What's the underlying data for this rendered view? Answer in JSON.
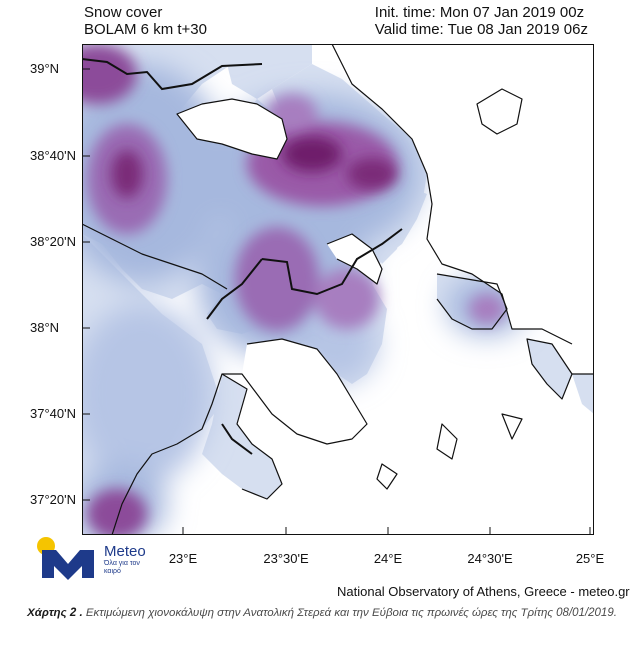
{
  "header": {
    "left_line1": "Snow cover",
    "left_line2": "BOLAM 6 km t+30",
    "right_line1": "Init. time: Mon 07 Jan 2019 00z",
    "right_line2": "Valid time: Tue 08 Jan 2019 06z"
  },
  "axes": {
    "lat_labels": [
      "39°N",
      "38°40'N",
      "38°20'N",
      "38°N",
      "37°40'N",
      "37°20'N"
    ],
    "lon_labels": [
      "23°E",
      "23°30'E",
      "24°E",
      "24°30'E",
      "25°E"
    ]
  },
  "colors": {
    "snow_light": "#c9d5ec",
    "snow_mid": "#a6b8de",
    "snow_blue": "#8497cf",
    "snow_purple": "#a05aa6",
    "snow_dark": "#7a1c73",
    "sea": "#ffffff",
    "land_bare": "#dfe6f3"
  },
  "logo": {
    "name": "Meteo",
    "tagline": "Όλα για τον καιρό",
    "mark_color": "#1e3a8a",
    "sun_color": "#f5c400"
  },
  "credit": "National Observatory of Athens, Greece - meteo.gr",
  "caption": {
    "lead": "Χάρτης 2 .",
    "text": " Εκτιμώμενη χιονοκάλυψη στην Ανατολική Στερεά και την Εύβοια τις πρωινές ώρες της Τρίτης 08/01/2019."
  }
}
